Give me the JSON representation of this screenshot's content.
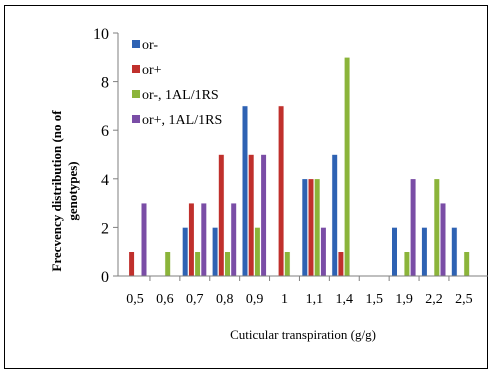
{
  "chart_data": {
    "type": "bar",
    "categories": [
      "0,5",
      "0,6",
      "0,7",
      "0,8",
      "0,9",
      "1",
      "1,1",
      "1,4",
      "1,5",
      "1,9",
      "2,2",
      "2,5"
    ],
    "series": [
      {
        "name": "or-",
        "color": "#2e62b3",
        "values": [
          0,
          0,
          2,
          2,
          7,
          0,
          4,
          5,
          0,
          2,
          2,
          2
        ]
      },
      {
        "name": "or+",
        "color": "#c0302c",
        "values": [
          1,
          0,
          3,
          5,
          5,
          7,
          4,
          1,
          0,
          0,
          0,
          0
        ]
      },
      {
        "name": "or-, 1AL/1RS",
        "color": "#8bb43a",
        "values": [
          0,
          1,
          1,
          1,
          2,
          1,
          4,
          9,
          0,
          1,
          4,
          1
        ]
      },
      {
        "name": "or+, 1AL/1RS",
        "color": "#7a4da6",
        "values": [
          3,
          0,
          3,
          3,
          5,
          0,
          2,
          0,
          0,
          4,
          3,
          0
        ]
      }
    ],
    "xlabel": "Cuticular transpiration (g/g)",
    "ylabel": "Frecvency distribution (no of genotypes)",
    "ylim": [
      0,
      10
    ],
    "yticks": [
      "0",
      "2",
      "4",
      "6",
      "8",
      "10"
    ],
    "grid": false,
    "legend_position": "top-left"
  }
}
